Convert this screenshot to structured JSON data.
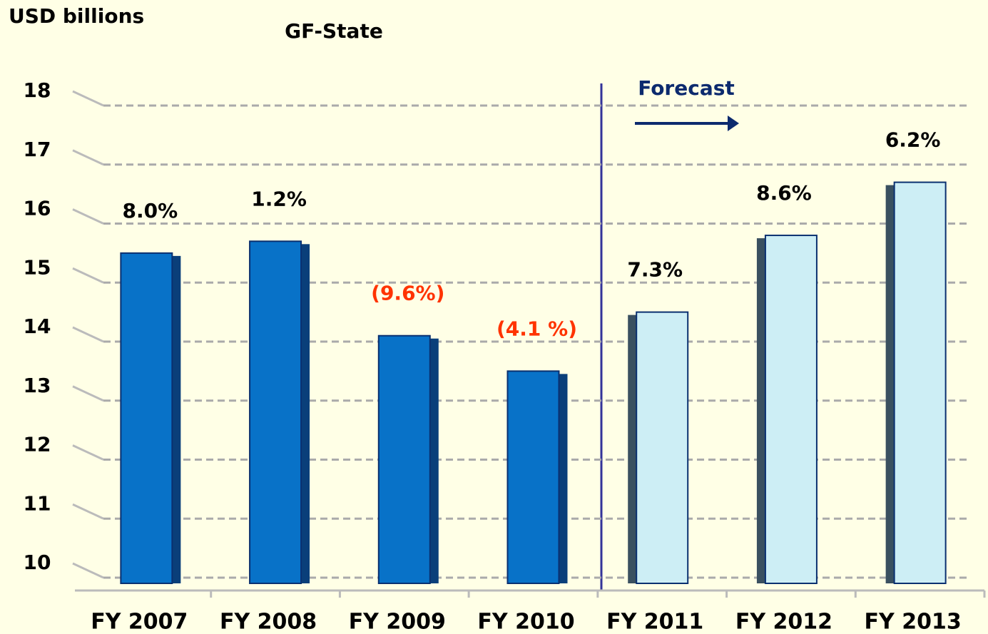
{
  "chart_data": {
    "type": "bar",
    "y_axis_label": "USD billions",
    "title": "GF-State",
    "annotation": "Forecast",
    "categories": [
      "FY 2007",
      "FY 2008",
      "FY 2009",
      "FY 2010",
      "FY 2011",
      "FY 2012",
      "FY 2013"
    ],
    "values": [
      15.5,
      15.7,
      14.1,
      13.5,
      14.5,
      15.8,
      16.7
    ],
    "colors": [
      "#0872c8",
      "#0872c8",
      "#0872c8",
      "#0872c8",
      "#cdeef5",
      "#cdeef5",
      "#cdeef5"
    ],
    "growth_labels": [
      "8.0%",
      "1.2%",
      "(9.6%)",
      "(4.1 %)",
      "7.3%",
      "8.6%",
      "6.2%"
    ],
    "growth_colors": [
      "#000000",
      "#000000",
      "#ff3300",
      "#ff3300",
      "#000000",
      "#000000",
      "#000000"
    ],
    "ylim": [
      10,
      18
    ],
    "yticks": [
      10,
      11,
      12,
      13,
      14,
      15,
      16,
      17,
      18
    ],
    "grid": true
  }
}
